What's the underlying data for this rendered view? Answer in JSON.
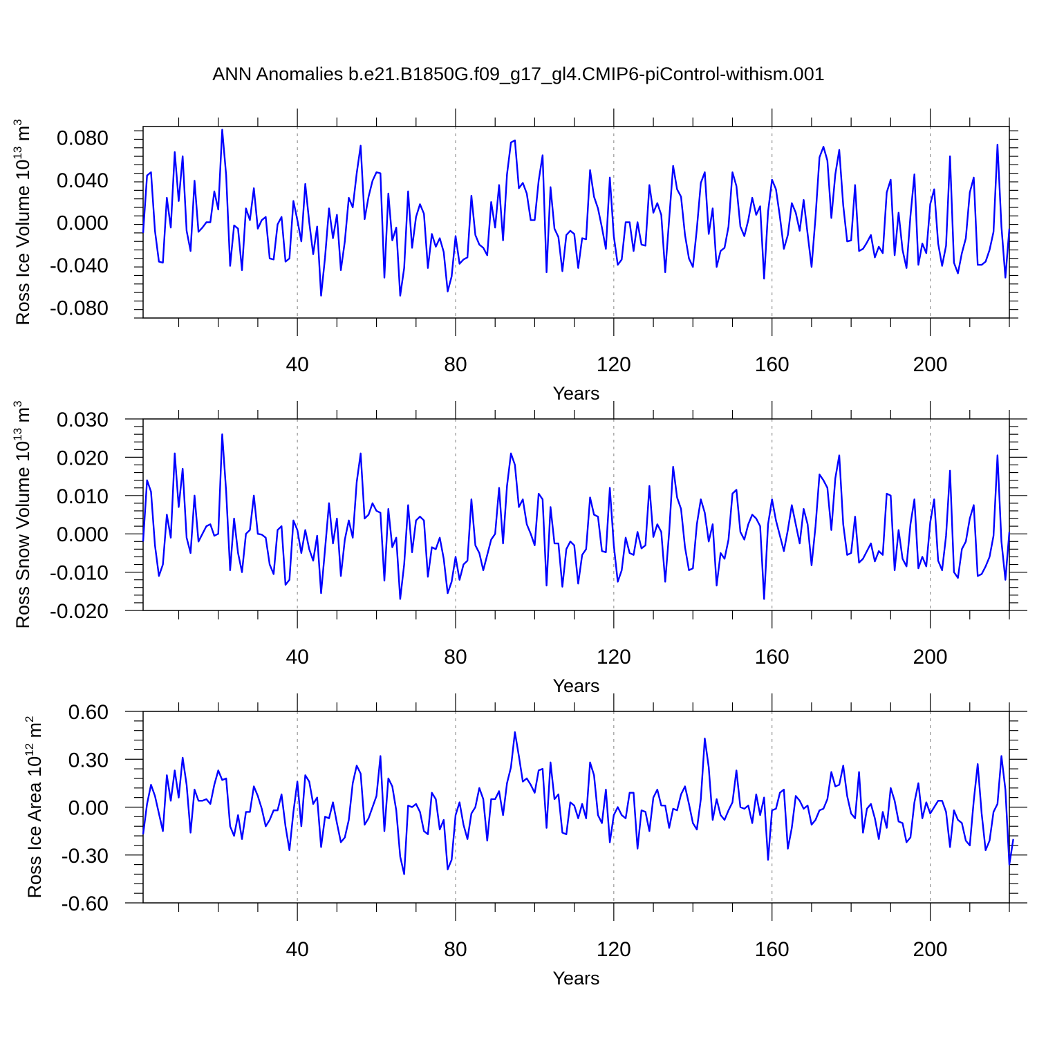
{
  "title": "ANN Anomalies b.e21.B1850G.f09_g17_gl4.CMIP6-piControl-withism.001",
  "colors": {
    "line": "#0000ff",
    "frame": "#000000",
    "grid": "#808080"
  },
  "chart_data": [
    {
      "type": "line",
      "ylabel_main": "Ross Ice Volume 10",
      "ylabel_exp": "13",
      "ylabel_unit": " m",
      "ylabel_unit_exp": "3",
      "xlabel": "Years",
      "xlim": [
        1,
        220
      ],
      "xticks": [
        40,
        80,
        120,
        160,
        200
      ],
      "xtick_labels": [
        "40",
        "80",
        "120",
        "160",
        "200"
      ],
      "ylim": [
        -0.09,
        0.09
      ],
      "yticks": [
        -0.08,
        -0.04,
        0.0,
        0.04,
        0.08
      ],
      "ytick_labels": [
        "-0.080",
        "-0.040",
        "0.000",
        "0.040",
        "0.080"
      ],
      "grid": "vertical dashed at labeled x ticks",
      "series": [
        {
          "values": [
            -0.01,
            0.044,
            0.047,
            -0.008,
            -0.037,
            -0.038,
            0.023,
            -0.005,
            0.066,
            0.02,
            0.062,
            -0.008,
            -0.027,
            0.039,
            -0.009,
            -0.005,
            0.0,
            0.0,
            0.029,
            0.012,
            0.087,
            0.044,
            -0.041,
            -0.003,
            -0.006,
            -0.045,
            0.013,
            0.002,
            0.032,
            -0.006,
            0.002,
            0.005,
            -0.034,
            -0.035,
            -0.002,
            0.005,
            -0.037,
            -0.034,
            0.02,
            0.002,
            -0.018,
            0.036,
            0.0,
            -0.03,
            -0.004,
            -0.069,
            -0.033,
            0.013,
            -0.015,
            0.007,
            -0.045,
            -0.018,
            0.023,
            0.014,
            0.046,
            0.072,
            0.003,
            0.024,
            0.039,
            0.047,
            0.046,
            -0.052,
            0.027,
            -0.017,
            -0.005,
            -0.069,
            -0.043,
            0.029,
            -0.024,
            0.005,
            0.017,
            0.008,
            -0.043,
            -0.011,
            -0.023,
            -0.015,
            -0.028,
            -0.065,
            -0.051,
            -0.013,
            -0.039,
            -0.035,
            -0.033,
            0.025,
            -0.012,
            -0.021,
            -0.024,
            -0.031,
            0.019,
            -0.005,
            0.035,
            -0.017,
            0.045,
            0.075,
            0.077,
            0.032,
            0.037,
            0.027,
            0.002,
            0.002,
            0.039,
            0.063,
            -0.047,
            0.033,
            -0.006,
            -0.014,
            -0.046,
            -0.012,
            -0.008,
            -0.011,
            -0.043,
            -0.015,
            -0.016,
            0.049,
            0.024,
            0.013,
            -0.005,
            -0.025,
            0.042,
            -0.013,
            -0.04,
            -0.035,
            0.0,
            0.0,
            -0.027,
            0.0,
            -0.021,
            -0.022,
            0.035,
            0.009,
            0.018,
            0.007,
            -0.047,
            0.003,
            0.053,
            0.031,
            0.024,
            -0.012,
            -0.034,
            -0.042,
            -0.006,
            0.037,
            0.047,
            -0.011,
            0.013,
            -0.042,
            -0.027,
            -0.024,
            -0.004,
            0.047,
            0.034,
            -0.004,
            -0.013,
            0.002,
            0.023,
            0.007,
            0.015,
            -0.053,
            0.01,
            0.04,
            0.031,
            0.005,
            -0.025,
            -0.012,
            0.018,
            0.009,
            -0.008,
            0.021,
            -0.011,
            -0.042,
            0.005,
            0.061,
            0.071,
            0.058,
            0.004,
            0.045,
            0.068,
            0.016,
            -0.018,
            -0.017,
            0.035,
            -0.027,
            -0.025,
            -0.019,
            -0.012,
            -0.033,
            -0.023,
            -0.029,
            0.028,
            0.04,
            -0.031,
            0.009,
            -0.026,
            -0.043,
            0.006,
            0.045,
            -0.04,
            -0.02,
            -0.029,
            0.017,
            0.031,
            -0.02,
            -0.041,
            -0.022,
            0.062,
            -0.038,
            -0.048,
            -0.029,
            -0.015,
            0.028,
            0.042,
            -0.04,
            -0.04,
            -0.037,
            -0.026,
            -0.009,
            0.073,
            -0.004,
            -0.052,
            -0.006
          ]
        }
      ]
    },
    {
      "type": "line",
      "ylabel_main": "Ross Snow Volume 10",
      "ylabel_exp": "13",
      "ylabel_unit": " m",
      "ylabel_unit_exp": "3",
      "xlabel": "Years",
      "xlim": [
        1,
        220
      ],
      "xticks": [
        40,
        80,
        120,
        160,
        200
      ],
      "xtick_labels": [
        "40",
        "80",
        "120",
        "160",
        "200"
      ],
      "ylim": [
        -0.02,
        0.03
      ],
      "yticks": [
        -0.02,
        -0.01,
        0.0,
        0.01,
        0.02,
        0.03
      ],
      "ytick_labels": [
        "-0.020",
        "-0.010",
        "0.000",
        "0.010",
        "0.020",
        "0.030"
      ],
      "grid": "vertical dashed at labeled x ticks",
      "series": [
        {
          "values": [
            -0.002,
            0.014,
            0.011,
            -0.003,
            -0.011,
            -0.008,
            0.005,
            -0.001,
            0.021,
            0.007,
            0.017,
            -0.001,
            -0.005,
            0.01,
            -0.002,
            0.0,
            0.002,
            0.0025,
            -0.0005,
            0.0,
            0.026,
            0.011,
            -0.0095,
            0.004,
            -0.005,
            -0.01,
            0.0,
            0.001,
            0.01,
            0.0,
            -0.0002,
            -0.001,
            -0.008,
            -0.0105,
            0.001,
            0.002,
            -0.0133,
            -0.012,
            0.0035,
            0.001,
            -0.005,
            0.001,
            -0.004,
            -0.007,
            -0.0005,
            -0.0155,
            -0.004,
            0.008,
            -0.0025,
            0.004,
            -0.011,
            -0.0015,
            0.0035,
            -0.001,
            0.0135,
            0.021,
            0.004,
            0.005,
            0.008,
            0.006,
            0.0055,
            -0.0122,
            0.0065,
            -0.0035,
            -0.001,
            -0.017,
            -0.008,
            0.0075,
            -0.0048,
            0.0035,
            0.0045,
            0.0035,
            -0.0112,
            -0.0035,
            -0.004,
            -0.001,
            -0.0065,
            -0.0155,
            -0.0125,
            -0.006,
            -0.012,
            -0.008,
            -0.007,
            0.009,
            -0.003,
            -0.005,
            -0.0095,
            -0.0055,
            -0.0015,
            0.0,
            0.012,
            -0.0025,
            0.0125,
            0.021,
            0.018,
            0.007,
            0.009,
            0.0025,
            0.0,
            -0.003,
            0.0105,
            0.009,
            -0.0135,
            0.007,
            -0.0025,
            -0.0025,
            -0.0138,
            -0.004,
            -0.002,
            -0.003,
            -0.013,
            -0.0055,
            -0.004,
            0.0095,
            0.005,
            0.0045,
            -0.0045,
            -0.0048,
            0.012,
            -0.003,
            -0.0125,
            -0.0095,
            -0.001,
            -0.005,
            -0.0055,
            0.0005,
            -0.0038,
            -0.003,
            0.0125,
            -0.0008,
            0.0025,
            0.0005,
            -0.0125,
            0.0005,
            0.0175,
            0.0095,
            0.0065,
            -0.0035,
            -0.0095,
            -0.009,
            0.0025,
            0.009,
            0.0055,
            -0.002,
            0.0025,
            -0.0135,
            -0.005,
            -0.0065,
            -0.0015,
            0.0105,
            0.0115,
            0.0005,
            -0.0015,
            0.0025,
            0.005,
            0.004,
            0.002,
            -0.017,
            0.0025,
            0.009,
            0.0035,
            -0.0005,
            -0.0045,
            0.001,
            0.0075,
            0.0025,
            -0.0025,
            0.0065,
            0.0025,
            -0.0082,
            0.002,
            0.0155,
            0.014,
            0.012,
            0.001,
            0.0145,
            0.0205,
            0.0025,
            -0.0055,
            -0.005,
            0.0045,
            -0.0075,
            -0.0065,
            -0.0045,
            -0.0025,
            -0.0072,
            -0.0045,
            -0.0055,
            0.0105,
            0.01,
            -0.0095,
            0.001,
            -0.0065,
            -0.0085,
            0.0025,
            0.009,
            -0.009,
            -0.006,
            -0.0085,
            0.003,
            0.009,
            -0.007,
            -0.0095,
            -0.0005,
            0.0165,
            -0.01,
            -0.0115,
            -0.004,
            -0.002,
            0.004,
            0.0075,
            -0.011,
            -0.0105,
            -0.0085,
            -0.006,
            -0.0005,
            0.0205,
            -0.002,
            -0.012,
            0.0005
          ]
        }
      ]
    },
    {
      "type": "line",
      "ylabel_main": "Ross Ice Area 10",
      "ylabel_exp": "12",
      "ylabel_unit": " m",
      "ylabel_unit_exp": "2",
      "xlabel": "Years",
      "xlim": [
        1,
        220
      ],
      "xticks": [
        40,
        80,
        120,
        160,
        200
      ],
      "xtick_labels": [
        "40",
        "80",
        "120",
        "160",
        "200"
      ],
      "ylim": [
        -0.6,
        0.6
      ],
      "yticks": [
        -0.6,
        -0.3,
        0.0,
        0.3,
        0.6
      ],
      "ytick_labels": [
        "-0.60",
        "-0.30",
        "0.00",
        "0.30",
        "0.60"
      ],
      "grid": "vertical dashed at labeled x ticks",
      "series": [
        {
          "values": [
            -0.17,
            0.02,
            0.14,
            0.07,
            -0.04,
            -0.15,
            0.2,
            0.04,
            0.23,
            0.06,
            0.31,
            0.14,
            -0.16,
            0.11,
            0.04,
            0.04,
            0.05,
            0.02,
            0.14,
            0.23,
            0.17,
            0.18,
            -0.12,
            -0.18,
            -0.05,
            -0.2,
            -0.03,
            -0.03,
            0.13,
            0.07,
            -0.01,
            -0.12,
            -0.08,
            -0.02,
            -0.02,
            0.08,
            -0.12,
            -0.27,
            -0.03,
            0.16,
            -0.12,
            0.2,
            0.16,
            0.02,
            0.06,
            -0.25,
            -0.06,
            -0.07,
            0.03,
            -0.1,
            -0.22,
            -0.19,
            -0.08,
            0.15,
            0.26,
            0.21,
            -0.11,
            -0.07,
            0.0,
            0.07,
            0.32,
            -0.15,
            0.18,
            0.13,
            -0.02,
            -0.31,
            -0.42,
            0.01,
            0.0,
            0.02,
            -0.03,
            -0.15,
            -0.17,
            0.09,
            0.05,
            -0.14,
            -0.08,
            -0.39,
            -0.33,
            -0.05,
            0.03,
            -0.11,
            -0.2,
            -0.04,
            0.0,
            0.12,
            0.05,
            -0.21,
            0.05,
            0.05,
            0.1,
            -0.05,
            0.15,
            0.25,
            0.47,
            0.32,
            0.16,
            0.18,
            0.14,
            0.09,
            0.23,
            0.24,
            -0.13,
            0.28,
            0.05,
            0.08,
            -0.16,
            -0.17,
            0.03,
            0.01,
            -0.07,
            0.02,
            -0.07,
            0.28,
            0.2,
            -0.05,
            -0.1,
            0.11,
            -0.22,
            -0.05,
            0.0,
            -0.05,
            -0.07,
            0.09,
            0.09,
            -0.26,
            -0.02,
            -0.03,
            -0.15,
            0.06,
            0.11,
            0.01,
            0.01,
            -0.13,
            -0.01,
            -0.02,
            0.08,
            0.13,
            0.02,
            -0.1,
            -0.14,
            0.05,
            0.43,
            0.25,
            -0.08,
            0.05,
            -0.05,
            -0.08,
            -0.02,
            0.03,
            0.23,
            0.0,
            -0.01,
            0.01,
            -0.1,
            0.08,
            -0.05,
            0.06,
            -0.33,
            -0.02,
            -0.01,
            0.09,
            0.11,
            -0.26,
            -0.13,
            0.07,
            0.04,
            -0.01,
            0.01,
            -0.11,
            -0.08,
            -0.02,
            -0.01,
            0.05,
            0.22,
            0.13,
            0.14,
            0.26,
            0.07,
            -0.04,
            -0.07,
            0.22,
            -0.16,
            -0.01,
            0.02,
            -0.07,
            -0.2,
            -0.03,
            -0.13,
            0.12,
            0.04,
            -0.09,
            -0.1,
            -0.22,
            -0.19,
            0.03,
            0.15,
            -0.07,
            0.03,
            -0.04,
            0.0,
            0.04,
            0.04,
            -0.03,
            -0.25,
            -0.02,
            -0.08,
            -0.1,
            -0.21,
            -0.24,
            0.04,
            0.27,
            -0.04,
            -0.27,
            -0.21,
            -0.03,
            0.02,
            0.32,
            0.11,
            -0.36,
            -0.2
          ]
        }
      ]
    }
  ]
}
